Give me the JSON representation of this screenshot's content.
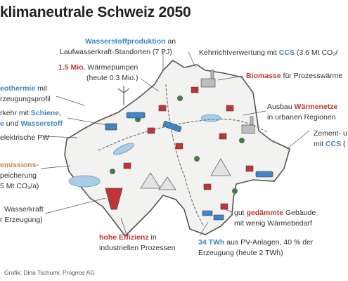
{
  "title": "klimaneutrale Schweiz 2050",
  "labels": {
    "wasserstoff": {
      "hl": "Wasserstoffproduktion",
      "rest1": " an",
      "line2": "Laufwasserkraft-Standorten (7 PJ)"
    },
    "waermepumpen": {
      "hl": "1.5 Mio.",
      "rest1": " Wärmepumpen",
      "line2": "(heute 0.3 Mio.)"
    },
    "geothermie": {
      "hl": "eothermie",
      "rest1": " mit",
      "line2": "rzeugungsprofil"
    },
    "verkehr": {
      "pre": "rkehr mit ",
      "hl1": "Schiene,",
      "line2_hl_a": "e",
      "line2_mid": " und ",
      "line2_hl_b": "Wasserstoff"
    },
    "pw": {
      "text": "elektrische PW"
    },
    "emissions": {
      "hl": "emissions-",
      "line2": "peicherung",
      "line3": "5 Mt CO₂/a)"
    },
    "wasserkraft": {
      "line1": "Wasserkraft",
      "line2": "r Erzeugung)"
    },
    "effizienz": {
      "hl": "hohe Effizienz",
      "rest1": " in",
      "line2": "industriellen Prozessen"
    },
    "kehricht": {
      "pre": "Kehrrichtverwertung mit ",
      "hl": "CCS",
      "post": " (3.6 Mt CO₂/"
    },
    "biomasse": {
      "hl": "Biomasse",
      "rest": " für Prozesswärme"
    },
    "waermenetze": {
      "pre": "Ausbau ",
      "hl": "Wärmenetze",
      "line2": "in urbanen Regionen"
    },
    "zement": {
      "line1": "Zement- u",
      "pre2": "mit ",
      "hl": "CCS",
      "post2": " ("
    },
    "gedaemmt": {
      "pre": "gut ",
      "hl": "gedämmte",
      "post": " Gebäude",
      "line2": "mit wenig Wärmebedarf"
    },
    "pv": {
      "hl": "34 TWh",
      "rest1": " aus PV-Anlagen, 40 % der",
      "line2": "Erzeugung (heute 2 TWh)"
    }
  },
  "credit": "Grafik: Dina Tschumi; Prognos AG",
  "colors": {
    "blue": "#3f86c6",
    "red": "#c23434",
    "map_fill": "#f2f2f0",
    "map_edge": "#555555"
  },
  "icons": [
    "hydro-dam-icon",
    "wind-turbine-icon",
    "train-icon",
    "house-icon",
    "tree-icon",
    "truck-icon",
    "factory-icon",
    "solar-panel-icon"
  ]
}
